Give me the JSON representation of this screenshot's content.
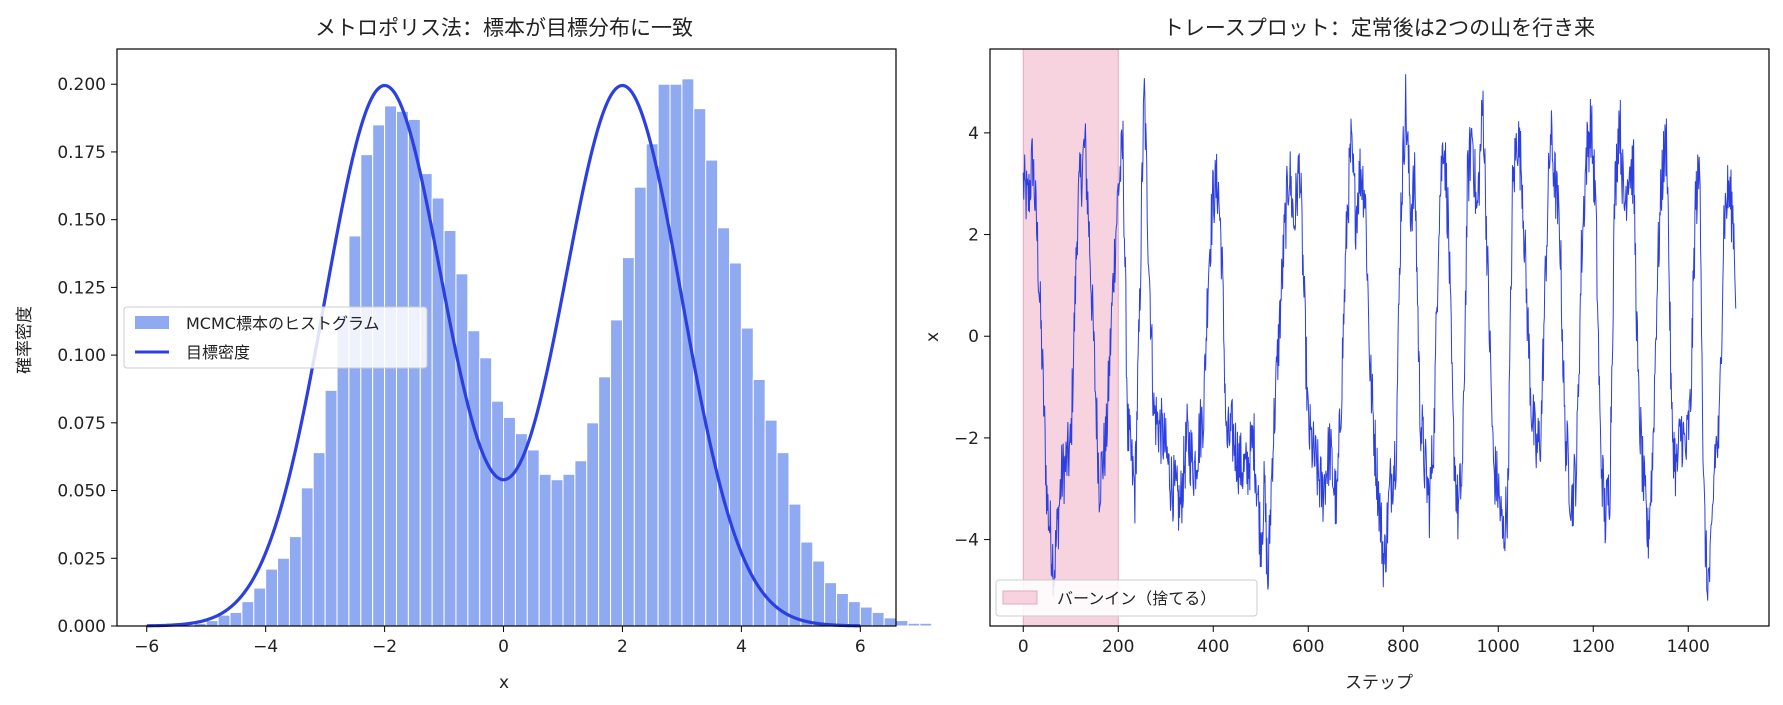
{
  "colors": {
    "hist_fill": "#8faaf0",
    "density_line": "#2c3fe0",
    "trace_line": "#2c3fe0",
    "burnin_fill": "#f6d3de",
    "burnin_edge": "#e6a9bc",
    "axes": "#000000"
  },
  "chart_data": [
    {
      "type": "bar",
      "title": "メトロポリス法：標本が目標分布に一致",
      "xlabel": "x",
      "ylabel": "確率密度",
      "xlim": [
        -6.5,
        6.6
      ],
      "ylim": [
        0,
        0.213
      ],
      "xticks": [
        -6,
        -4,
        -2,
        0,
        2,
        4,
        6
      ],
      "xtick_labels": [
        "−6",
        "−4",
        "−2",
        "0",
        "2",
        "4",
        "6"
      ],
      "yticks": [
        0,
        0.025,
        0.05,
        0.075,
        0.1,
        0.125,
        0.15,
        0.175,
        0.2
      ],
      "ytick_labels": [
        "0.000",
        "0.025",
        "0.050",
        "0.075",
        "0.100",
        "0.125",
        "0.150",
        "0.175",
        "0.200"
      ],
      "legend_position": "center-left",
      "legend": [
        {
          "label": "MCMC標本のヒストグラム",
          "kind": "patch"
        },
        {
          "label": "目標密度",
          "kind": "line"
        }
      ],
      "histogram": {
        "bin_width": 0.2,
        "bin_start": -5.2,
        "values": [
          0.001,
          0.002,
          0.004,
          0.005,
          0.009,
          0.014,
          0.021,
          0.025,
          0.033,
          0.051,
          0.064,
          0.087,
          0.115,
          0.144,
          0.174,
          0.185,
          0.192,
          0.19,
          0.187,
          0.167,
          0.158,
          0.146,
          0.13,
          0.109,
          0.099,
          0.083,
          0.077,
          0.071,
          0.065,
          0.056,
          0.054,
          0.056,
          0.061,
          0.075,
          0.092,
          0.113,
          0.136,
          0.162,
          0.178,
          0.2,
          0.2,
          0.202,
          0.191,
          0.172,
          0.147,
          0.134,
          0.11,
          0.091,
          0.076,
          0.064,
          0.045,
          0.031,
          0.024,
          0.016,
          0.012,
          0.009,
          0.007,
          0.005,
          0.003,
          0.002,
          0.001,
          0.001
        ]
      },
      "density_curve": {
        "description_of_model": "equal mixture of normals",
        "means": [
          -2,
          2
        ],
        "sd": 1,
        "x_range": [
          -6,
          6
        ]
      }
    },
    {
      "type": "line",
      "title": "トレースプロット：定常後は2つの山を行き来",
      "xlabel": "ステップ",
      "ylabel": "x",
      "xlim": [
        -70,
        1570
      ],
      "ylim": [
        -5.7,
        5.65
      ],
      "xticks": [
        0,
        200,
        400,
        600,
        800,
        1000,
        1200,
        1400
      ],
      "xtick_labels": [
        "0",
        "200",
        "400",
        "600",
        "800",
        "1000",
        "1200",
        "1400"
      ],
      "yticks": [
        -4,
        -2,
        0,
        2,
        4
      ],
      "ytick_labels": [
        "−4",
        "−2",
        "0",
        "2",
        "4"
      ],
      "legend_position": "lower-left",
      "legend": [
        {
          "label": "バーンイン（捨てる）",
          "kind": "patch"
        }
      ],
      "burnin": [
        0,
        200
      ],
      "steps": 1500,
      "trace_anchors": [
        [
          0,
          3.0
        ],
        [
          10,
          2.6
        ],
        [
          20,
          3.5
        ],
        [
          30,
          1.8
        ],
        [
          40,
          -0.5
        ],
        [
          50,
          -3.2
        ],
        [
          65,
          -4.6
        ],
        [
          80,
          -2.8
        ],
        [
          100,
          -2.2
        ],
        [
          115,
          2.6
        ],
        [
          130,
          3.8
        ],
        [
          140,
          1.8
        ],
        [
          150,
          -0.6
        ],
        [
          160,
          -2.9
        ],
        [
          175,
          -2.0
        ],
        [
          190,
          1.2
        ],
        [
          200,
          2.9
        ],
        [
          210,
          3.7
        ],
        [
          220,
          -1.8
        ],
        [
          235,
          -3.1
        ],
        [
          245,
          0.4
        ],
        [
          250,
          3.0
        ],
        [
          255,
          4.8
        ],
        [
          262,
          2.3
        ],
        [
          275,
          -1.5
        ],
        [
          295,
          -2.0
        ],
        [
          310,
          -2.8
        ],
        [
          330,
          -3.4
        ],
        [
          345,
          -2.0
        ],
        [
          360,
          -2.6
        ],
        [
          380,
          -1.4
        ],
        [
          390,
          1.4
        ],
        [
          400,
          2.8
        ],
        [
          410,
          3.0
        ],
        [
          418,
          1.6
        ],
        [
          428,
          -2.1
        ],
        [
          440,
          -1.9
        ],
        [
          455,
          -2.5
        ],
        [
          470,
          -2.7
        ],
        [
          485,
          -2.0
        ],
        [
          500,
          -4.0
        ],
        [
          508,
          -3.0
        ],
        [
          515,
          -4.9
        ],
        [
          525,
          -2.2
        ],
        [
          540,
          0.3
        ],
        [
          550,
          2.0
        ],
        [
          560,
          3.3
        ],
        [
          570,
          2.2
        ],
        [
          582,
          3.4
        ],
        [
          592,
          0.5
        ],
        [
          600,
          -1.8
        ],
        [
          615,
          -2.5
        ],
        [
          630,
          -3.1
        ],
        [
          645,
          -2.2
        ],
        [
          660,
          -3.4
        ],
        [
          670,
          -1.0
        ],
        [
          682,
          2.4
        ],
        [
          690,
          3.7
        ],
        [
          700,
          2.4
        ],
        [
          710,
          3.3
        ],
        [
          720,
          2.8
        ],
        [
          730,
          -0.6
        ],
        [
          740,
          -2.1
        ],
        [
          752,
          -3.6
        ],
        [
          760,
          -4.5
        ],
        [
          772,
          -3.0
        ],
        [
          785,
          -2.2
        ],
        [
          795,
          2.5
        ],
        [
          805,
          4.6
        ],
        [
          815,
          2.5
        ],
        [
          825,
          3.0
        ],
        [
          835,
          -1.4
        ],
        [
          845,
          -2.5
        ],
        [
          855,
          -3.3
        ],
        [
          865,
          -1.8
        ],
        [
          875,
          2.4
        ],
        [
          885,
          4.0
        ],
        [
          895,
          2.2
        ],
        [
          905,
          -1.9
        ],
        [
          915,
          -3.5
        ],
        [
          925,
          -2.6
        ],
        [
          935,
          2.9
        ],
        [
          945,
          4.1
        ],
        [
          955,
          2.3
        ],
        [
          968,
          4.6
        ],
        [
          978,
          1.2
        ],
        [
          990,
          -2.6
        ],
        [
          1000,
          -3.0
        ],
        [
          1010,
          -4.0
        ],
        [
          1020,
          -3.2
        ],
        [
          1030,
          2.8
        ],
        [
          1040,
          4.0
        ],
        [
          1050,
          3.2
        ],
        [
          1060,
          0.7
        ],
        [
          1070,
          -1.4
        ],
        [
          1080,
          -2.3
        ],
        [
          1090,
          -1.9
        ],
        [
          1100,
          1.4
        ],
        [
          1110,
          4.0
        ],
        [
          1120,
          3.0
        ],
        [
          1130,
          2.0
        ],
        [
          1140,
          -1.8
        ],
        [
          1155,
          -3.3
        ],
        [
          1165,
          -2.5
        ],
        [
          1175,
          1.5
        ],
        [
          1185,
          3.5
        ],
        [
          1195,
          4.2
        ],
        [
          1205,
          2.6
        ],
        [
          1215,
          -2.1
        ],
        [
          1225,
          -3.6
        ],
        [
          1235,
          -2.9
        ],
        [
          1245,
          2.7
        ],
        [
          1255,
          4.4
        ],
        [
          1265,
          2.5
        ],
        [
          1275,
          3.4
        ],
        [
          1285,
          3.2
        ],
        [
          1295,
          -1.2
        ],
        [
          1305,
          -2.8
        ],
        [
          1315,
          -4.0
        ],
        [
          1325,
          -2.4
        ],
        [
          1335,
          1.2
        ],
        [
          1345,
          3.2
        ],
        [
          1355,
          3.9
        ],
        [
          1365,
          -1.7
        ],
        [
          1375,
          -2.7
        ],
        [
          1385,
          -1.8
        ],
        [
          1395,
          -2.3
        ],
        [
          1405,
          -1.4
        ],
        [
          1415,
          2.6
        ],
        [
          1425,
          3.3
        ],
        [
          1432,
          -3.0
        ],
        [
          1440,
          -5.0
        ],
        [
          1448,
          -4.4
        ],
        [
          1456,
          -2.3
        ],
        [
          1465,
          -2.0
        ],
        [
          1475,
          2.3
        ],
        [
          1485,
          2.9
        ],
        [
          1495,
          2.3
        ],
        [
          1500,
          1.0
        ]
      ]
    }
  ]
}
